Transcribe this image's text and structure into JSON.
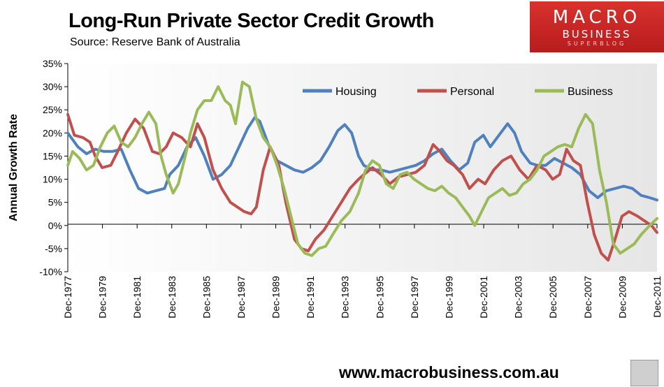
{
  "header": {
    "title": "Long-Run Private Sector Credit Growth",
    "subtitle": "Source: Reserve Bank of Australia"
  },
  "logo": {
    "line1": "MACRO",
    "line2": "BUSINESS",
    "line3": "SUPERBLOG"
  },
  "footer": {
    "url": "www.macrobusiness.com.au"
  },
  "colors": {
    "housing": "#4f81bd",
    "personal": "#c0504d",
    "business": "#9bbb59",
    "plot_bg": "#ededed"
  },
  "chart_data": {
    "type": "line",
    "title": "Long-Run Private Sector Credit Growth",
    "subtitle": "Source: Reserve Bank of Australia",
    "ylabel": "Annual Growth Rate",
    "xlabel": "",
    "ylim": [
      -10,
      35
    ],
    "ytick_labels": [
      "35%",
      "30%",
      "25%",
      "20%",
      "15%",
      "10%",
      "5%",
      "0%",
      "-5%",
      "-10%"
    ],
    "xlim": [
      1977.92,
      2011.92
    ],
    "x_tick_labels": [
      "Dec-1977",
      "Dec-1979",
      "Dec-1981",
      "Dec-1983",
      "Dec-1985",
      "Dec-1987",
      "Dec-1989",
      "Dec-1991",
      "Dec-1993",
      "Dec-1995",
      "Dec-1997",
      "Dec-1999",
      "Dec-2001",
      "Dec-2003",
      "Dec-2005",
      "Dec-2007",
      "Dec-2009",
      "Dec-2011"
    ],
    "legend_position": "top-right",
    "grid": false,
    "series": [
      {
        "name": "Housing",
        "color": "#4f81bd",
        "points": [
          [
            1977.92,
            20
          ],
          [
            1978.5,
            17
          ],
          [
            1979,
            15.5
          ],
          [
            1979.5,
            16.5
          ],
          [
            1980,
            16
          ],
          [
            1980.5,
            16
          ],
          [
            1981,
            16.5
          ],
          [
            1981.5,
            12
          ],
          [
            1982,
            8
          ],
          [
            1982.5,
            7
          ],
          [
            1983,
            7.5
          ],
          [
            1983.5,
            8
          ],
          [
            1983.8,
            11
          ],
          [
            1984.3,
            13
          ],
          [
            1984.8,
            17
          ],
          [
            1985.3,
            19
          ],
          [
            1985.8,
            15
          ],
          [
            1986.3,
            10
          ],
          [
            1986.8,
            11
          ],
          [
            1987.3,
            13
          ],
          [
            1987.8,
            17
          ],
          [
            1988.3,
            21
          ],
          [
            1988.7,
            23.3
          ],
          [
            1989,
            22.5
          ],
          [
            1989.5,
            17.5
          ],
          [
            1990,
            14
          ],
          [
            1990.5,
            13
          ],
          [
            1991,
            12
          ],
          [
            1991.5,
            11.5
          ],
          [
            1992,
            12.5
          ],
          [
            1992.5,
            14
          ],
          [
            1993,
            17
          ],
          [
            1993.5,
            20.5
          ],
          [
            1993.9,
            21.8
          ],
          [
            1994.3,
            20
          ],
          [
            1994.7,
            15
          ],
          [
            1995,
            13
          ],
          [
            1995.5,
            12
          ],
          [
            1996,
            12
          ],
          [
            1996.5,
            11.5
          ],
          [
            1997,
            12
          ],
          [
            1997.5,
            12.5
          ],
          [
            1998,
            13
          ],
          [
            1998.5,
            14
          ],
          [
            1999,
            15.5
          ],
          [
            1999.5,
            16.5
          ],
          [
            2000,
            14
          ],
          [
            2000.5,
            12
          ],
          [
            2001,
            13.5
          ],
          [
            2001.4,
            18
          ],
          [
            2001.9,
            19.5
          ],
          [
            2002.3,
            17
          ],
          [
            2002.8,
            19.5
          ],
          [
            2003.3,
            22
          ],
          [
            2003.7,
            20
          ],
          [
            2004.1,
            16
          ],
          [
            2004.6,
            13.5
          ],
          [
            2005,
            13
          ],
          [
            2005.5,
            13
          ],
          [
            2006,
            14.5
          ],
          [
            2006.5,
            13.5
          ],
          [
            2007,
            12.5
          ],
          [
            2007.5,
            11
          ],
          [
            2008,
            7.5
          ],
          [
            2008.5,
            6
          ],
          [
            2009,
            7.5
          ],
          [
            2009.5,
            8
          ],
          [
            2010,
            8.5
          ],
          [
            2010.5,
            8
          ],
          [
            2011,
            6.5
          ],
          [
            2011.5,
            6
          ],
          [
            2011.92,
            5.5
          ]
        ]
      },
      {
        "name": "Personal",
        "color": "#c0504d",
        "points": [
          [
            1977.92,
            24
          ],
          [
            1978.3,
            19.5
          ],
          [
            1978.8,
            19
          ],
          [
            1979.2,
            18
          ],
          [
            1979.5,
            15
          ],
          [
            1979.9,
            12.5
          ],
          [
            1980.4,
            13
          ],
          [
            1980.8,
            16
          ],
          [
            1981.3,
            20
          ],
          [
            1981.8,
            23
          ],
          [
            1982.3,
            21
          ],
          [
            1982.8,
            16
          ],
          [
            1983.2,
            15.5
          ],
          [
            1983.6,
            17
          ],
          [
            1984,
            20
          ],
          [
            1984.5,
            19
          ],
          [
            1985,
            17
          ],
          [
            1985.4,
            22
          ],
          [
            1985.8,
            19
          ],
          [
            1986.3,
            12
          ],
          [
            1986.8,
            8
          ],
          [
            1987.3,
            5
          ],
          [
            1987.7,
            4
          ],
          [
            1988.1,
            3
          ],
          [
            1988.5,
            2.5
          ],
          [
            1988.8,
            4
          ],
          [
            1989.2,
            12
          ],
          [
            1989.6,
            17
          ],
          [
            1990.1,
            13
          ],
          [
            1990.5,
            5
          ],
          [
            1991,
            -3
          ],
          [
            1991.4,
            -5
          ],
          [
            1991.8,
            -5.5
          ],
          [
            1992.2,
            -3
          ],
          [
            1992.7,
            -1
          ],
          [
            1993.2,
            2
          ],
          [
            1993.7,
            5
          ],
          [
            1994.2,
            8
          ],
          [
            1994.7,
            10
          ],
          [
            1995,
            11
          ],
          [
            1995.5,
            12.5
          ],
          [
            1996,
            11
          ],
          [
            1996.5,
            9
          ],
          [
            1997,
            10.5
          ],
          [
            1997.5,
            11
          ],
          [
            1998,
            11.5
          ],
          [
            1998.5,
            13
          ],
          [
            1999,
            17.5
          ],
          [
            1999.4,
            16
          ],
          [
            1999.8,
            14
          ],
          [
            2000.2,
            13
          ],
          [
            2000.7,
            11
          ],
          [
            2001.1,
            8
          ],
          [
            2001.6,
            10
          ],
          [
            2002,
            9
          ],
          [
            2002.5,
            12
          ],
          [
            2003,
            14
          ],
          [
            2003.5,
            15
          ],
          [
            2004,
            12
          ],
          [
            2004.5,
            10
          ],
          [
            2005,
            13
          ],
          [
            2005.5,
            12
          ],
          [
            2005.9,
            10
          ],
          [
            2006.3,
            11
          ],
          [
            2006.7,
            16.5
          ],
          [
            2007.1,
            14
          ],
          [
            2007.5,
            13
          ],
          [
            2007.9,
            5
          ],
          [
            2008.3,
            -2
          ],
          [
            2008.7,
            -6
          ],
          [
            2009.1,
            -7.5
          ],
          [
            2009.5,
            -3
          ],
          [
            2009.9,
            2
          ],
          [
            2010.3,
            3
          ],
          [
            2010.8,
            2
          ],
          [
            2011.2,
            1
          ],
          [
            2011.6,
            0
          ],
          [
            2011.92,
            -1.5
          ]
        ]
      },
      {
        "name": "Business",
        "color": "#9bbb59",
        "points": [
          [
            1977.92,
            13
          ],
          [
            1978.2,
            16
          ],
          [
            1978.6,
            14.5
          ],
          [
            1979,
            12
          ],
          [
            1979.4,
            13
          ],
          [
            1979.8,
            17
          ],
          [
            1980.2,
            20
          ],
          [
            1980.6,
            21.5
          ],
          [
            1981,
            18
          ],
          [
            1981.4,
            17
          ],
          [
            1981.8,
            19
          ],
          [
            1982.2,
            22
          ],
          [
            1982.6,
            24.5
          ],
          [
            1983,
            22
          ],
          [
            1983.3,
            15
          ],
          [
            1983.6,
            11
          ],
          [
            1984,
            7
          ],
          [
            1984.3,
            9
          ],
          [
            1984.7,
            15
          ],
          [
            1985,
            20
          ],
          [
            1985.4,
            25
          ],
          [
            1985.8,
            27
          ],
          [
            1986.2,
            27
          ],
          [
            1986.6,
            30
          ],
          [
            1987,
            27
          ],
          [
            1987.3,
            26
          ],
          [
            1987.6,
            22
          ],
          [
            1988,
            31
          ],
          [
            1988.4,
            30
          ],
          [
            1988.8,
            23
          ],
          [
            1989.2,
            19
          ],
          [
            1989.6,
            17
          ],
          [
            1990,
            13
          ],
          [
            1990.4,
            8
          ],
          [
            1990.8,
            2
          ],
          [
            1991.2,
            -4
          ],
          [
            1991.6,
            -6
          ],
          [
            1992,
            -6.5
          ],
          [
            1992.4,
            -5
          ],
          [
            1992.8,
            -4.5
          ],
          [
            1993.2,
            -2
          ],
          [
            1993.7,
            1
          ],
          [
            1994.2,
            3
          ],
          [
            1994.7,
            7
          ],
          [
            1995.1,
            12
          ],
          [
            1995.5,
            14
          ],
          [
            1995.9,
            13
          ],
          [
            1996.3,
            9
          ],
          [
            1996.7,
            8
          ],
          [
            1997.1,
            11
          ],
          [
            1997.5,
            11.5
          ],
          [
            1997.9,
            10
          ],
          [
            1998.3,
            9
          ],
          [
            1998.7,
            8
          ],
          [
            1999.1,
            7.5
          ],
          [
            1999.5,
            8.5
          ],
          [
            1999.9,
            7
          ],
          [
            2000.3,
            6
          ],
          [
            2000.7,
            4
          ],
          [
            2001.1,
            2
          ],
          [
            2001.4,
            0
          ],
          [
            2001.8,
            3
          ],
          [
            2002.2,
            6
          ],
          [
            2002.6,
            7
          ],
          [
            2003,
            8
          ],
          [
            2003.4,
            6.5
          ],
          [
            2003.8,
            7
          ],
          [
            2004.2,
            9
          ],
          [
            2004.6,
            10
          ],
          [
            2005,
            12
          ],
          [
            2005.4,
            15
          ],
          [
            2005.8,
            16
          ],
          [
            2006.2,
            17
          ],
          [
            2006.6,
            17.5
          ],
          [
            2007,
            17
          ],
          [
            2007.4,
            21
          ],
          [
            2007.8,
            24
          ],
          [
            2008.2,
            22
          ],
          [
            2008.6,
            12
          ],
          [
            2009,
            5
          ],
          [
            2009.4,
            -4
          ],
          [
            2009.8,
            -6
          ],
          [
            2010.2,
            -5
          ],
          [
            2010.6,
            -4
          ],
          [
            2011,
            -2
          ],
          [
            2011.5,
            0
          ],
          [
            2011.92,
            1.5
          ]
        ]
      }
    ]
  }
}
